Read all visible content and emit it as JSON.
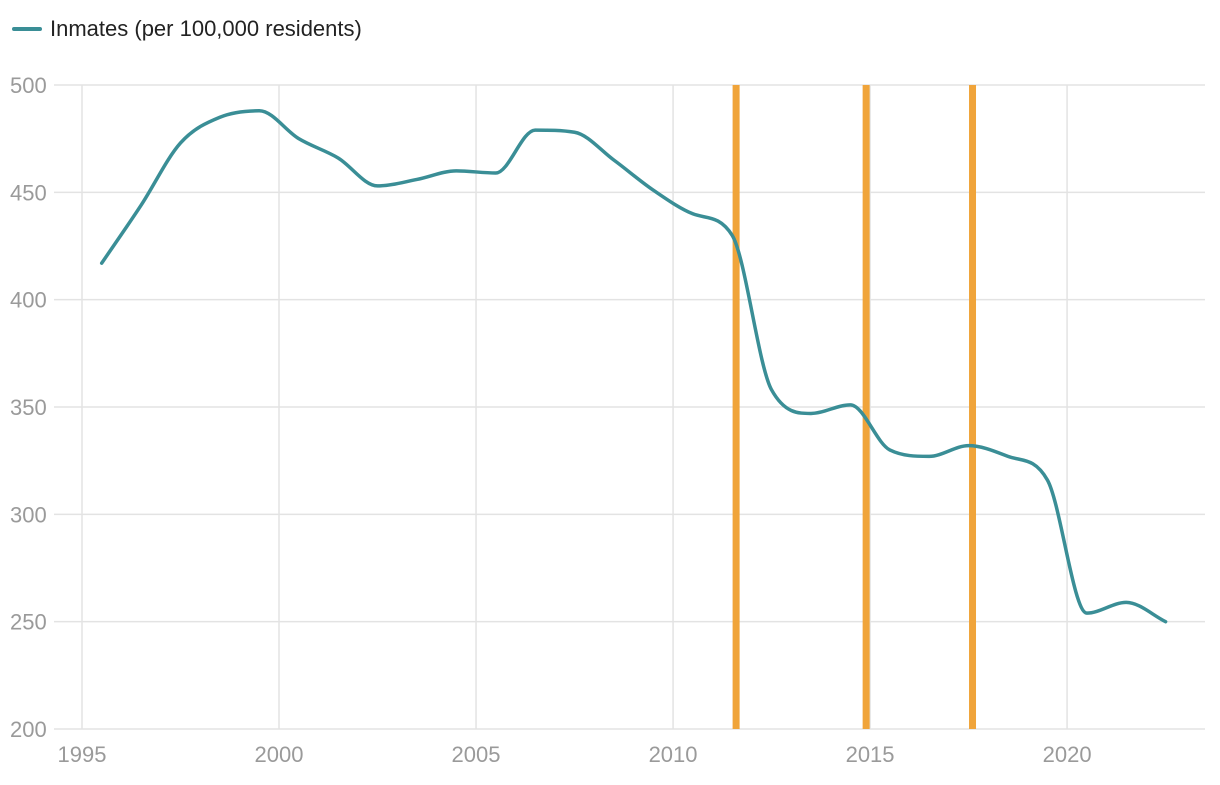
{
  "chart_data": {
    "type": "line",
    "title": "",
    "xlabel": "",
    "ylabel": "",
    "xlim": [
      1995,
      2023.5
    ],
    "ylim": [
      200,
      500
    ],
    "x_ticks": [
      1995,
      2000,
      2005,
      2010,
      2015,
      2020
    ],
    "y_ticks": [
      200,
      250,
      300,
      350,
      400,
      450,
      500
    ],
    "grid": true,
    "legend_position": "top-left",
    "series": [
      {
        "name": "Inmates (per 100,000 residents)",
        "color": "#3a8e96",
        "x": [
          1995.5,
          1996.5,
          1997.5,
          1998.5,
          1999.5,
          2000.5,
          2001.5,
          2002.5,
          2003.5,
          2004.5,
          2005.5,
          2006.5,
          2007.5,
          2008.5,
          2009.5,
          2010.5,
          2011.5,
          2012.5,
          2013.5,
          2014.5,
          2015.5,
          2016.5,
          2017.5,
          2018.5,
          2019.5,
          2020.5,
          2021.5,
          2022.5
        ],
        "values": [
          417,
          444,
          473,
          485,
          488,
          475,
          466,
          453,
          456,
          460,
          459,
          479,
          478,
          465,
          451,
          440,
          430,
          358,
          347,
          351,
          330,
          327,
          332,
          327,
          316,
          254,
          259,
          250
        ]
      }
    ],
    "vertical_markers": {
      "color": "#f0a43a",
      "x": [
        2011.6,
        2014.9,
        2017.6
      ]
    }
  }
}
